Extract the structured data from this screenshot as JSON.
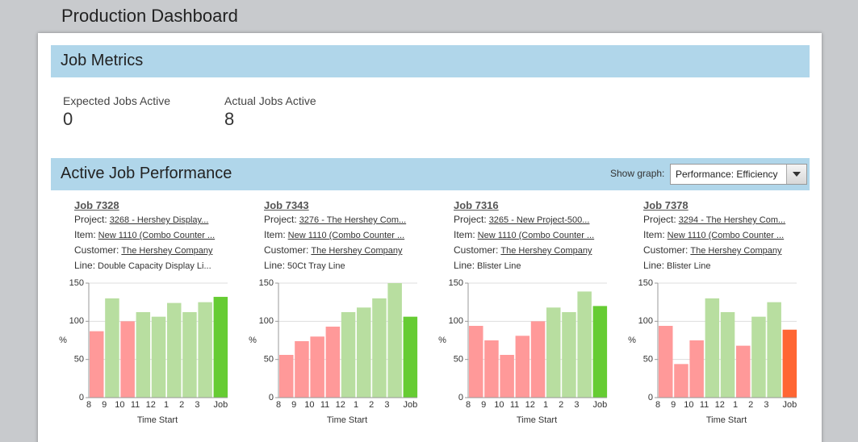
{
  "header": {
    "title": "Production Dashboard"
  },
  "job_metrics": {
    "title": "Job Metrics",
    "metrics": [
      {
        "label": "Expected Jobs Active",
        "value": 0
      },
      {
        "label": "Actual Jobs Active",
        "value": 8
      }
    ]
  },
  "performance": {
    "title": "Active Job Performance",
    "show_graph_label": "Show graph:",
    "selected": "Performance: Efficiency",
    "jobs": [
      {
        "job": "Job 7328",
        "fields": [
          {
            "label": "Project:",
            "value": "3268 - Hershey Display..."
          },
          {
            "label": "Item:",
            "value": "New 1110 (Combo Counter ..."
          },
          {
            "label": "Customer:",
            "value": "The Hershey Company"
          },
          {
            "label": "Line:",
            "value": "Double Capacity Display Li..."
          }
        ],
        "chart": {
          "type": "bar",
          "ylabel": "%",
          "xlabel": "Time Start",
          "categories": [
            "8",
            "9",
            "10",
            "11",
            "12",
            "1",
            "2",
            "3",
            "Job"
          ],
          "values": [
            87,
            130,
            100,
            112,
            106,
            124,
            112,
            125,
            132
          ],
          "colors": [
            "#ff9999",
            "#b8dea0",
            "#ff9999",
            "#b8dea0",
            "#b8dea0",
            "#b8dea0",
            "#b8dea0",
            "#b8dea0",
            "#66cc33"
          ],
          "ylim": [
            0,
            150
          ],
          "yticks": [
            0,
            50,
            100,
            150
          ],
          "grid": true
        }
      },
      {
        "job": "Job 7343",
        "fields": [
          {
            "label": "Project:",
            "value": "3276 - The Hershey Com..."
          },
          {
            "label": "Item:",
            "value": "New 1110 (Combo Counter ..."
          },
          {
            "label": "Customer:",
            "value": "The Hershey Company"
          },
          {
            "label": "Line:",
            "value": "50Ct Tray Line"
          }
        ],
        "chart": {
          "type": "bar",
          "ylabel": "%",
          "xlabel": "Time Start",
          "categories": [
            "8",
            "9",
            "10",
            "11",
            "12",
            "1",
            "2",
            "3",
            "Job"
          ],
          "values": [
            56,
            74,
            80,
            93,
            112,
            118,
            130,
            150,
            106
          ],
          "colors": [
            "#ff9999",
            "#ff9999",
            "#ff9999",
            "#ff9999",
            "#b8dea0",
            "#b8dea0",
            "#b8dea0",
            "#b8dea0",
            "#66cc33"
          ],
          "ylim": [
            0,
            150
          ],
          "yticks": [
            0,
            50,
            100,
            150
          ],
          "grid": true
        }
      },
      {
        "job": "Job 7316",
        "fields": [
          {
            "label": "Project:",
            "value": "3265 - New Project-500..."
          },
          {
            "label": "Item:",
            "value": "New 1110 (Combo Counter ..."
          },
          {
            "label": "Customer:",
            "value": "The Hershey Company"
          },
          {
            "label": "Line:",
            "value": "Blister Line"
          }
        ],
        "chart": {
          "type": "bar",
          "ylabel": "%",
          "xlabel": "Time Start",
          "categories": [
            "8",
            "9",
            "10",
            "11",
            "12",
            "1",
            "2",
            "3",
            "Job"
          ],
          "values": [
            94,
            75,
            56,
            81,
            100,
            118,
            112,
            139,
            120
          ],
          "colors": [
            "#ff9999",
            "#ff9999",
            "#ff9999",
            "#ff9999",
            "#ff9999",
            "#b8dea0",
            "#b8dea0",
            "#b8dea0",
            "#66cc33"
          ],
          "ylim": [
            0,
            150
          ],
          "yticks": [
            0,
            50,
            100,
            150
          ],
          "grid": true
        }
      },
      {
        "job": "Job 7378",
        "fields": [
          {
            "label": "Project:",
            "value": "3294 - The Hershey Com..."
          },
          {
            "label": "Item:",
            "value": "New 1110 (Combo Counter ..."
          },
          {
            "label": "Customer:",
            "value": "The Hershey Company"
          },
          {
            "label": "Line:",
            "value": "Blister Line"
          }
        ],
        "chart": {
          "type": "bar",
          "ylabel": "%",
          "xlabel": "Time Start",
          "categories": [
            "8",
            "9",
            "10",
            "11",
            "12",
            "1",
            "2",
            "3",
            "Job"
          ],
          "values": [
            94,
            44,
            75,
            130,
            112,
            68,
            106,
            125,
            89
          ],
          "colors": [
            "#ff9999",
            "#ff9999",
            "#ff9999",
            "#b8dea0",
            "#b8dea0",
            "#ff9999",
            "#b8dea0",
            "#b8dea0",
            "#ff6633"
          ],
          "ylim": [
            0,
            150
          ],
          "yticks": [
            0,
            50,
            100,
            150
          ],
          "grid": true
        }
      }
    ]
  }
}
